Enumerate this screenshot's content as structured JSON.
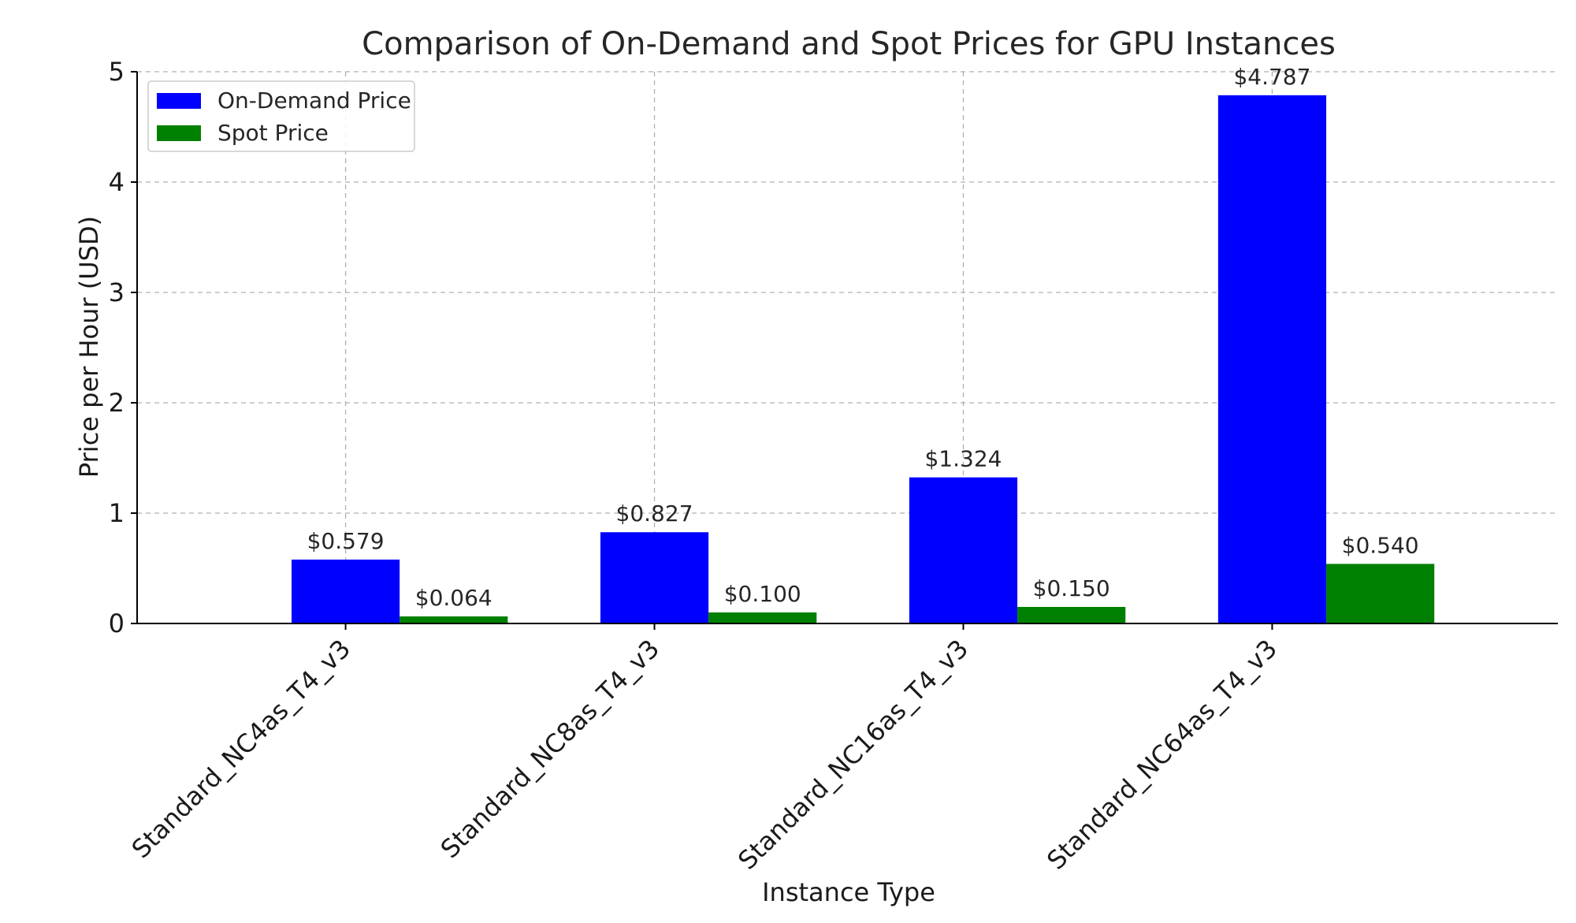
{
  "chart_data": {
    "type": "bar",
    "title": "Comparison of On-Demand and Spot Prices for GPU Instances",
    "xlabel": "Instance Type",
    "ylabel": "Price per Hour (USD)",
    "categories": [
      "Standard_NC4as_T4_v3",
      "Standard_NC8as_T4_v3",
      "Standard_NC16as_T4_v3",
      "Standard_NC64as_T4_v3"
    ],
    "series": [
      {
        "name": "On-Demand Price",
        "color": "#0000ff",
        "values": [
          0.579,
          0.827,
          1.324,
          4.787
        ],
        "labels": [
          "$0.579",
          "$0.827",
          "$1.324",
          "$4.787"
        ]
      },
      {
        "name": "Spot Price",
        "color": "#008000",
        "values": [
          0.064,
          0.1,
          0.15,
          0.54
        ],
        "labels": [
          "$0.064",
          "$0.100",
          "$0.150",
          "$0.540"
        ]
      }
    ],
    "ylim": [
      0,
      5
    ],
    "yticks": [
      0,
      1,
      2,
      3,
      4,
      5
    ],
    "grid": true,
    "legend_position": "top-left"
  }
}
